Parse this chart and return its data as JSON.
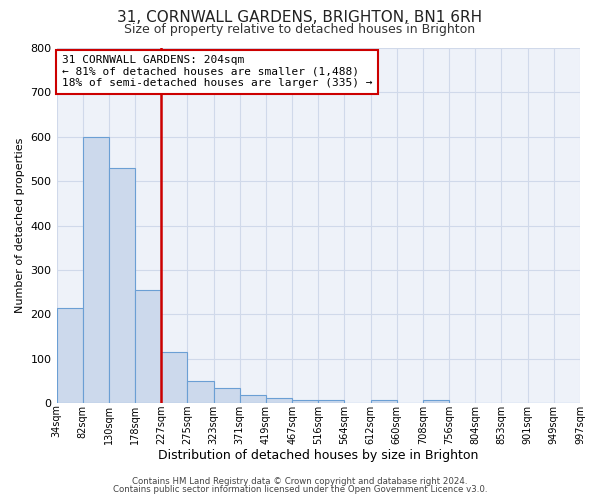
{
  "title": "31, CORNWALL GARDENS, BRIGHTON, BN1 6RH",
  "subtitle": "Size of property relative to detached houses in Brighton",
  "xlabel": "Distribution of detached houses by size in Brighton",
  "ylabel": "Number of detached properties",
  "bar_color": "#ccd9ec",
  "bar_edge_color": "#6b9fd4",
  "vline_x_bin": 4,
  "vline_color": "#cc0000",
  "annotation_box_text": "31 CORNWALL GARDENS: 204sqm\n← 81% of detached houses are smaller (1,488)\n18% of semi-detached houses are larger (335) →",
  "annotation_box_color": "#cc0000",
  "bin_edges": [
    0,
    1,
    2,
    3,
    4,
    5,
    6,
    7,
    8,
    9,
    10,
    11,
    12,
    13,
    14,
    15,
    16,
    17,
    18,
    19,
    20
  ],
  "bin_labels": [
    "34sqm",
    "82sqm",
    "130sqm",
    "178sqm",
    "227sqm",
    "275sqm",
    "323sqm",
    "371sqm",
    "419sqm",
    "467sqm",
    "516sqm",
    "564sqm",
    "612sqm",
    "660sqm",
    "708sqm",
    "756sqm",
    "804sqm",
    "853sqm",
    "901sqm",
    "949sqm",
    "997sqm"
  ],
  "bar_heights": [
    215,
    600,
    530,
    255,
    115,
    50,
    33,
    18,
    12,
    8,
    8,
    0,
    8,
    0,
    8,
    0,
    0,
    0,
    0,
    0
  ],
  "ylim": [
    0,
    800
  ],
  "xlim": [
    0,
    20
  ],
  "yticks": [
    0,
    100,
    200,
    300,
    400,
    500,
    600,
    700,
    800
  ],
  "grid_color": "#d0d9ea",
  "background_color": "#eef2f9",
  "title_fontsize": 11,
  "subtitle_fontsize": 9,
  "footer1": "Contains HM Land Registry data © Crown copyright and database right 2024.",
  "footer2": "Contains public sector information licensed under the Open Government Licence v3.0."
}
